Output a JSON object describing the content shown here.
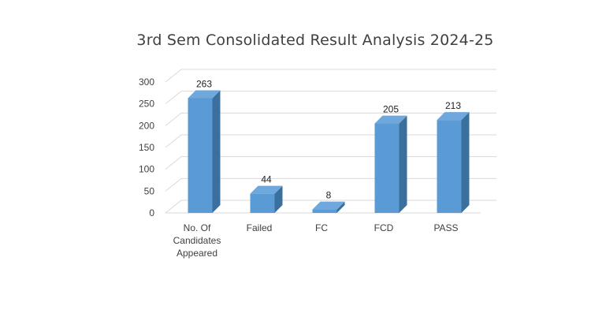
{
  "chart_data": {
    "type": "bar",
    "title": "3rd Sem Consolidated Result Analysis 2024-25",
    "categories": [
      "No. Of Candidates Appeared",
      "Failed",
      "FC",
      "FCD",
      "PASS"
    ],
    "category_lines": [
      [
        "No. Of",
        "Candidates",
        "Appeared"
      ],
      [
        "Failed"
      ],
      [
        "FC"
      ],
      [
        "FCD"
      ],
      [
        "PASS"
      ]
    ],
    "values": [
      263,
      44,
      8,
      205,
      213
    ],
    "ylim": [
      0,
      300
    ],
    "yticks": [
      0,
      50,
      100,
      150,
      200,
      250,
      300
    ],
    "xlabel": "",
    "ylabel": "",
    "grid": true,
    "legend": "none",
    "colors": {
      "bar_front": "#5B9BD5",
      "bar_top": "#6FA8DC",
      "bar_side": "#3A6F9E",
      "grid": "#D9D9D9"
    }
  }
}
